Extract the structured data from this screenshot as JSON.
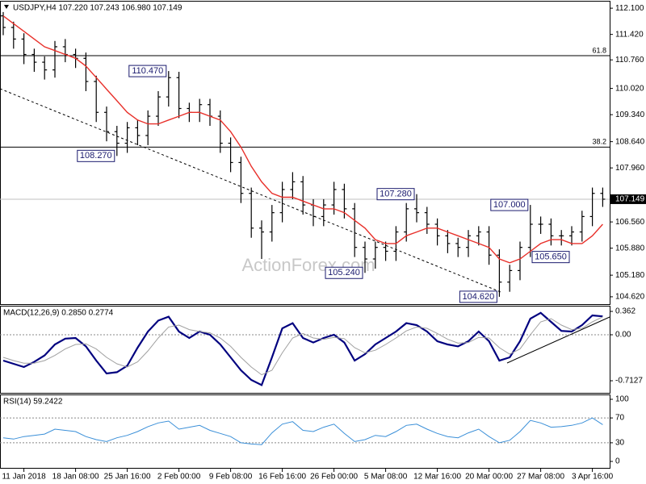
{
  "chart_data": [
    {
      "type": "ohlc",
      "title": "USDJPY,H4  107.220 107.243 106.980 107.149",
      "watermark": "ActionForex.com",
      "categories": [
        null,
        null,
        "11 Jan 2018",
        null,
        null,
        null,
        null,
        "18 Jan 08:00",
        null,
        null,
        null,
        null,
        "25 Jan 16:00",
        null,
        null,
        null,
        null,
        "2 Feb 00:00",
        null,
        null,
        null,
        null,
        "9 Feb 08:00",
        null,
        null,
        null,
        null,
        "16 Feb 16:00",
        null,
        null,
        null,
        null,
        "26 Feb 00:00",
        null,
        null,
        null,
        null,
        "5 Mar 08:00",
        null,
        null,
        null,
        null,
        "12 Mar 16:00",
        null,
        null,
        null,
        null,
        "20 Mar 00:00",
        null,
        null,
        null,
        null,
        "27 Mar 08:00",
        null,
        null,
        null,
        null,
        "3 Apr 16:00",
        null
      ],
      "color": "#000000",
      "open": [
        111.9,
        111.6,
        111.3,
        110.9,
        110.7,
        110.5,
        111.1,
        110.9,
        110.8,
        110.2,
        109.4,
        108.9,
        108.6,
        109.0,
        108.8,
        109.3,
        109.8,
        110.3,
        109.5,
        109.4,
        109.6,
        109.3,
        108.6,
        108.1,
        107.3,
        106.4,
        106.3,
        106.8,
        107.4,
        107.6,
        107.0,
        106.7,
        107.0,
        107.4,
        106.9,
        105.9,
        105.6,
        105.9,
        105.8,
        106.3,
        106.9,
        106.8,
        106.5,
        106.2,
        106.0,
        105.9,
        106.2,
        106.3,
        105.7,
        105.0,
        105.3,
        105.9,
        106.5,
        106.5,
        106.2,
        106.2,
        106.3,
        106.7,
        107.3
      ],
      "high": [
        112.0,
        111.75,
        111.45,
        111.05,
        110.85,
        111.25,
        111.3,
        111.05,
        110.95,
        110.35,
        109.55,
        109.05,
        109.15,
        109.2,
        109.45,
        109.95,
        110.47,
        110.45,
        109.65,
        109.75,
        109.75,
        109.45,
        108.75,
        108.25,
        107.45,
        106.6,
        107.0,
        107.6,
        107.85,
        107.75,
        107.15,
        107.15,
        107.6,
        107.55,
        107.05,
        106.05,
        106.05,
        106.05,
        106.45,
        107.05,
        107.28,
        106.95,
        106.65,
        106.35,
        106.15,
        106.35,
        106.45,
        106.45,
        105.85,
        105.45,
        106.05,
        107.0,
        106.7,
        106.65,
        106.35,
        106.45,
        106.85,
        107.45,
        107.45
      ],
      "low": [
        111.4,
        111.05,
        110.65,
        110.45,
        110.25,
        110.3,
        110.7,
        110.55,
        109.95,
        109.15,
        108.65,
        108.27,
        108.35,
        108.55,
        108.55,
        109.05,
        109.55,
        109.25,
        109.15,
        109.15,
        109.05,
        108.35,
        107.85,
        107.05,
        106.15,
        105.6,
        106.05,
        106.55,
        107.15,
        106.75,
        106.45,
        106.45,
        106.75,
        106.65,
        105.65,
        105.24,
        105.35,
        105.55,
        105.55,
        106.05,
        106.55,
        106.25,
        105.95,
        105.75,
        105.65,
        105.65,
        105.95,
        105.45,
        104.62,
        104.75,
        105.05,
        105.65,
        106.25,
        105.95,
        105.95,
        105.95,
        106.05,
        106.45,
        106.95
      ],
      "close": [
        111.6,
        111.3,
        110.9,
        110.7,
        110.5,
        111.1,
        110.9,
        110.8,
        110.2,
        109.4,
        108.9,
        108.6,
        109.0,
        108.8,
        109.3,
        109.8,
        110.3,
        109.5,
        109.4,
        109.6,
        109.3,
        108.6,
        108.1,
        107.3,
        106.4,
        106.3,
        106.8,
        107.4,
        107.6,
        107.0,
        106.7,
        107.0,
        107.4,
        106.9,
        105.9,
        105.6,
        105.9,
        105.8,
        106.3,
        106.9,
        106.8,
        106.5,
        106.2,
        106.0,
        105.9,
        106.2,
        106.3,
        105.7,
        105.0,
        105.3,
        105.9,
        106.5,
        106.5,
        106.2,
        106.2,
        106.3,
        106.7,
        107.3,
        107.149
      ],
      "ma": {
        "color": "#e8302a",
        "values": [
          111.9,
          111.7,
          111.5,
          111.3,
          111.1,
          111.0,
          110.9,
          110.8,
          110.6,
          110.3,
          110.0,
          109.7,
          109.4,
          109.2,
          109.1,
          109.1,
          109.2,
          109.3,
          109.4,
          109.4,
          109.3,
          109.2,
          108.9,
          108.5,
          108.0,
          107.6,
          107.3,
          107.2,
          107.2,
          107.1,
          107.0,
          106.9,
          106.9,
          106.8,
          106.6,
          106.4,
          106.1,
          106.0,
          106.0,
          106.2,
          106.3,
          106.4,
          106.4,
          106.3,
          106.2,
          106.1,
          106.0,
          105.9,
          105.6,
          105.5,
          105.6,
          105.8,
          106.0,
          106.1,
          106.1,
          106.0,
          106.0,
          106.2,
          106.5
        ]
      },
      "ylim": [
        104.43,
        112.27
      ],
      "yticks": [
        {
          "value": 112.1,
          "label": "112.100"
        },
        {
          "value": 111.42,
          "label": "111.420"
        },
        {
          "value": 110.76,
          "label": "110.760"
        },
        {
          "value": 110.02,
          "label": "110.020"
        },
        {
          "value": 109.34,
          "label": "109.340"
        },
        {
          "value": 108.64,
          "label": "108.640"
        },
        {
          "value": 107.96,
          "label": "107.960"
        },
        {
          "value": 106.56,
          "label": "106.560"
        },
        {
          "value": 105.88,
          "label": "105.880"
        },
        {
          "value": 105.18,
          "label": "105.180"
        },
        {
          "value": 104.62,
          "label": "104.620"
        }
      ],
      "levels": [
        {
          "value": 110.87,
          "label": "61.8"
        },
        {
          "value": 108.5,
          "label": "38.2"
        }
      ],
      "price_line": {
        "value": 107.149,
        "color": "#c0c0c0"
      },
      "annotations": [
        {
          "bar": 16,
          "value": 110.47,
          "label": "110.470"
        },
        {
          "bar": 11,
          "value": 108.27,
          "label": "108.270"
        },
        {
          "bar": 40,
          "value": 107.28,
          "label": "107.280"
        },
        {
          "bar": 51,
          "value": 107.0,
          "label": "107.000"
        },
        {
          "bar": 55,
          "value": 105.65,
          "label": "105.650"
        },
        {
          "bar": 35,
          "value": 105.24,
          "label": "105.240"
        },
        {
          "bar": 48,
          "value": 104.62,
          "label": "104.620"
        }
      ]
    },
    {
      "type": "line",
      "title": "MACD(12,26,9) 0.2850 0.2774",
      "series": [
        {
          "color": "#00007f",
          "values": [
            -0.4,
            -0.45,
            -0.5,
            -0.42,
            -0.32,
            -0.15,
            -0.06,
            -0.05,
            -0.18,
            -0.4,
            -0.6,
            -0.58,
            -0.48,
            -0.2,
            0.05,
            0.22,
            0.28,
            0.05,
            -0.05,
            0.05,
            0.0,
            -0.15,
            -0.35,
            -0.55,
            -0.7,
            -0.78,
            -0.35,
            0.1,
            0.18,
            -0.05,
            -0.12,
            -0.05,
            0.0,
            -0.12,
            -0.4,
            -0.3,
            -0.15,
            -0.05,
            0.05,
            0.18,
            0.15,
            0.05,
            -0.1,
            -0.15,
            -0.18,
            -0.1,
            0.05,
            -0.1,
            -0.4,
            -0.35,
            -0.1,
            0.25,
            0.34,
            0.2,
            0.06,
            0.05,
            0.15,
            0.3,
            0.285
          ]
        },
        {
          "color": "#a0a0a0",
          "values": [
            -0.35,
            -0.4,
            -0.44,
            -0.44,
            -0.4,
            -0.32,
            -0.22,
            -0.15,
            -0.14,
            -0.22,
            -0.35,
            -0.45,
            -0.5,
            -0.42,
            -0.25,
            -0.05,
            0.12,
            0.15,
            0.08,
            0.05,
            0.03,
            -0.05,
            -0.18,
            -0.35,
            -0.5,
            -0.62,
            -0.55,
            -0.28,
            -0.05,
            0.02,
            -0.05,
            -0.07,
            -0.04,
            -0.06,
            -0.2,
            -0.28,
            -0.24,
            -0.15,
            -0.05,
            0.06,
            0.12,
            0.1,
            0.02,
            -0.07,
            -0.13,
            -0.12,
            -0.04,
            -0.05,
            -0.2,
            -0.3,
            -0.22,
            0.0,
            0.2,
            0.25,
            0.15,
            0.08,
            0.1,
            0.2,
            0.2774
          ]
        }
      ],
      "ylim": [
        -0.9,
        0.4375
      ],
      "yticks": [
        0.362,
        {
          "value": 0,
          "label": "0.00"
        },
        -0.7127
      ],
      "levels": [
        0
      ]
    },
    {
      "type": "line",
      "title": "RSI(14) 59.2422",
      "series": [
        {
          "color": "#3a8fd8",
          "values": [
            38,
            36,
            40,
            42,
            44,
            52,
            50,
            48,
            40,
            35,
            32,
            38,
            42,
            48,
            56,
            62,
            65,
            52,
            55,
            58,
            50,
            45,
            40,
            30,
            28,
            27,
            46,
            60,
            64,
            50,
            48,
            55,
            60,
            45,
            32,
            35,
            42,
            40,
            48,
            58,
            60,
            52,
            45,
            40,
            38,
            46,
            52,
            40,
            30,
            34,
            48,
            66,
            62,
            55,
            56,
            58,
            62,
            70,
            59.2422
          ]
        }
      ],
      "ylim": [
        -10.4,
        106.5
      ],
      "yticks": [
        100,
        70,
        30,
        0
      ],
      "levels": [
        70,
        30
      ]
    }
  ]
}
